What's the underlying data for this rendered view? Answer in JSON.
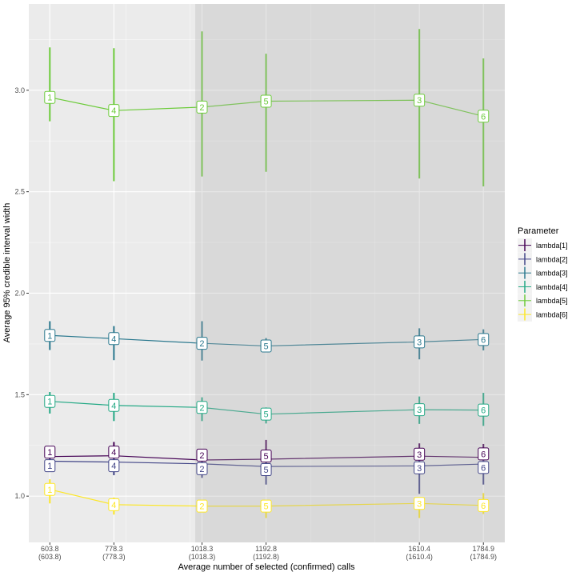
{
  "chart_data": {
    "type": "line",
    "xlabel": "Average number of selected (confirmed) calls",
    "ylabel": "Average 95% credible interval width",
    "x": [
      603.8,
      778.3,
      1018.3,
      1192.8,
      1610.4,
      1784.9
    ],
    "x_tick_labels": [
      [
        "603.8",
        "(603.8)"
      ],
      [
        "778.3",
        "(778.3)"
      ],
      [
        "1018.3",
        "(1018.3)"
      ],
      [
        "1192.8",
        "(1192.8)"
      ],
      [
        "1610.4",
        "(1610.4)"
      ],
      [
        "1784.9",
        "(1784.9)"
      ]
    ],
    "point_labels": [
      "1",
      "4",
      "2",
      "5",
      "3",
      "6"
    ],
    "y_ticks": [
      1.0,
      1.5,
      2.0,
      2.5,
      3.0
    ],
    "y_tick_labels": [
      "1.0",
      "1.5",
      "2.0",
      "2.5",
      "3.0"
    ],
    "xlim": [
      546.5,
      1843.2
    ],
    "ylim": [
      0.772,
      3.425
    ],
    "grid": true,
    "shaded_region_x_start": 1000,
    "legend": {
      "title": "Parameter",
      "position": "right"
    },
    "series": [
      {
        "name": "lambda[1]",
        "color": "#440154",
        "values": [
          1.195,
          1.199,
          1.178,
          1.182,
          1.197,
          1.191
        ],
        "lower": [
          1.15,
          1.16,
          1.1,
          1.11,
          1.14,
          1.15
        ],
        "upper": [
          1.234,
          1.267,
          1.221,
          1.277,
          1.26,
          1.257
        ]
      },
      {
        "name": "lambda[2]",
        "color": "#414487",
        "values": [
          1.172,
          1.168,
          1.159,
          1.146,
          1.149,
          1.158
        ],
        "lower": [
          1.135,
          1.103,
          1.09,
          1.057,
          1.011,
          1.057
        ],
        "upper": [
          1.215,
          1.22,
          1.2,
          1.2,
          1.2,
          1.21
        ]
      },
      {
        "name": "lambda[3]",
        "color": "#2A788E",
        "values": [
          1.792,
          1.776,
          1.753,
          1.74,
          1.76,
          1.772
        ],
        "lower": [
          1.72,
          1.67,
          1.668,
          1.72,
          1.674,
          1.718
        ],
        "upper": [
          1.862,
          1.838,
          1.862,
          1.779,
          1.827,
          1.822
        ]
      },
      {
        "name": "lambda[4]",
        "color": "#22A884",
        "values": [
          1.467,
          1.447,
          1.437,
          1.404,
          1.426,
          1.424
        ],
        "lower": [
          1.407,
          1.37,
          1.37,
          1.358,
          1.356,
          1.346
        ],
        "upper": [
          1.513,
          1.509,
          1.487,
          1.437,
          1.491,
          1.509
        ]
      },
      {
        "name": "lambda[5]",
        "color": "#6CCB3A",
        "values": [
          2.965,
          2.9,
          2.917,
          2.946,
          2.951,
          2.872
        ],
        "lower": [
          2.847,
          2.552,
          2.575,
          2.598,
          2.565,
          2.526
        ],
        "upper": [
          3.211,
          3.207,
          3.29,
          3.18,
          3.302,
          3.157
        ]
      },
      {
        "name": "lambda[6]",
        "color": "#FDE725",
        "values": [
          1.033,
          0.958,
          0.951,
          0.951,
          0.964,
          0.954
        ],
        "lower": [
          0.964,
          0.909,
          0.92,
          0.892,
          0.892,
          0.912
        ],
        "upper": [
          1.083,
          0.993,
          0.98,
          0.98,
          0.993,
          1.015
        ]
      }
    ]
  }
}
